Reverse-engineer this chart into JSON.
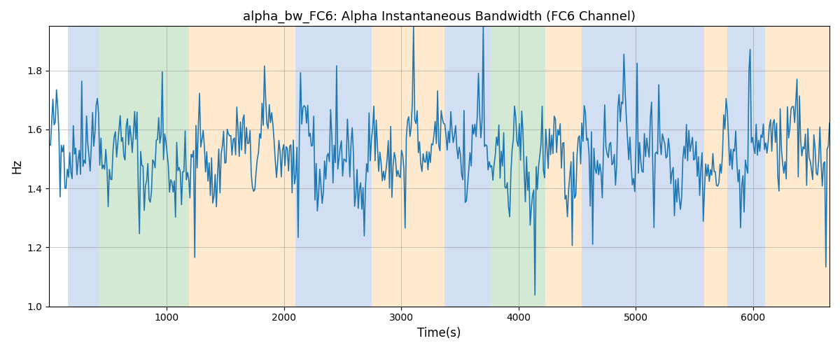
{
  "title": "alpha_bw_FC6: Alpha Instantaneous Bandwidth (FC6 Channel)",
  "xlabel": "Time(s)",
  "ylabel": "Hz",
  "xlim": [
    0,
    6650
  ],
  "ylim": [
    1.0,
    1.95
  ],
  "yticks": [
    1.0,
    1.2,
    1.4,
    1.6,
    1.8
  ],
  "xticks": [
    1000,
    2000,
    3000,
    4000,
    5000,
    6000
  ],
  "background_regions": [
    {
      "xstart": 160,
      "xend": 430,
      "color": "#aec6e8"
    },
    {
      "xstart": 430,
      "xend": 1190,
      "color": "#b2d8b2"
    },
    {
      "xstart": 1190,
      "xend": 2100,
      "color": "#ffd9aa"
    },
    {
      "xstart": 2100,
      "xend": 2750,
      "color": "#aec6e8"
    },
    {
      "xstart": 2750,
      "xend": 3370,
      "color": "#ffd9aa"
    },
    {
      "xstart": 3370,
      "xend": 3620,
      "color": "#aec6e8"
    },
    {
      "xstart": 3620,
      "xend": 3760,
      "color": "#aec6e8"
    },
    {
      "xstart": 3760,
      "xend": 4230,
      "color": "#b2d8b2"
    },
    {
      "xstart": 4230,
      "xend": 4540,
      "color": "#ffd9aa"
    },
    {
      "xstart": 4540,
      "xend": 4610,
      "color": "#aec6e8"
    },
    {
      "xstart": 4610,
      "xend": 5580,
      "color": "#aec6e8"
    },
    {
      "xstart": 5580,
      "xend": 5780,
      "color": "#ffd9aa"
    },
    {
      "xstart": 5780,
      "xend": 6100,
      "color": "#aec6e8"
    },
    {
      "xstart": 6100,
      "xend": 6650,
      "color": "#ffd9aa"
    }
  ],
  "line_color": "#1f77b4",
  "line_width": 1.2,
  "grid": true,
  "title_fontsize": 13,
  "seed": 42,
  "n_points": 650
}
